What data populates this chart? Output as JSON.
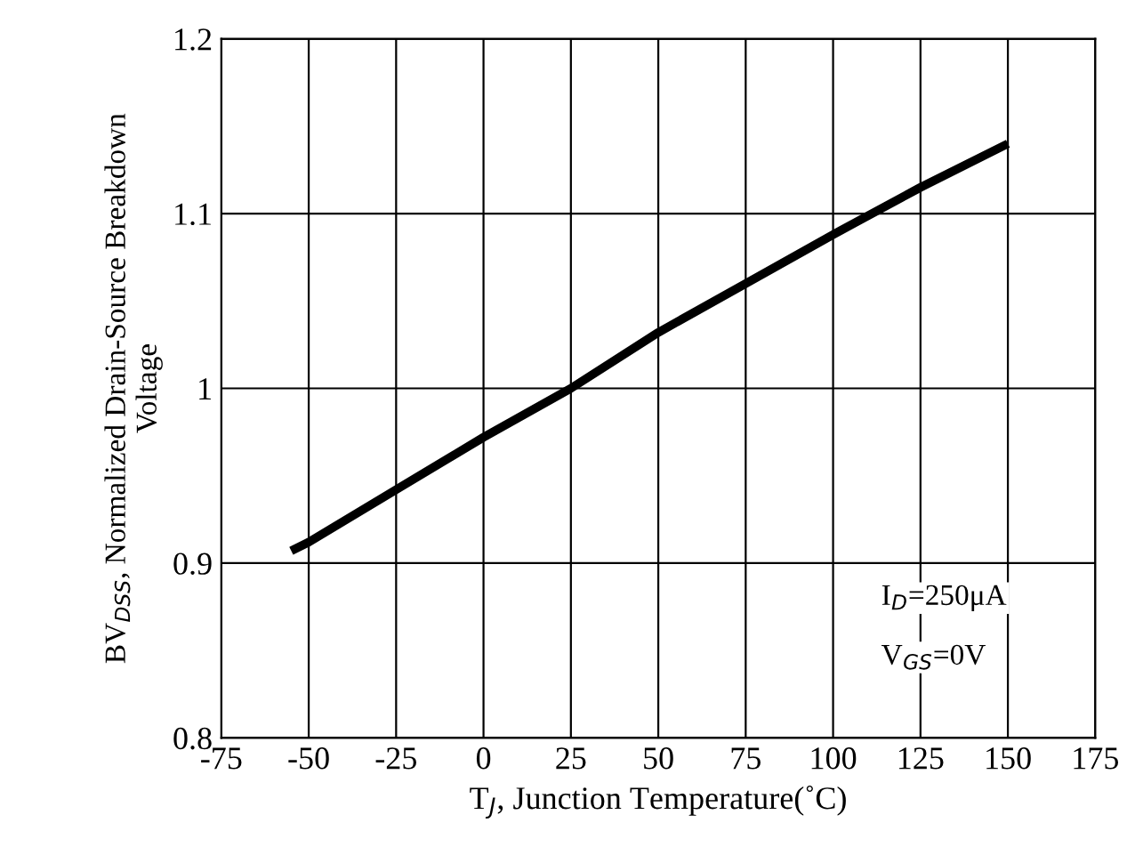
{
  "chart_data": {
    "type": "line",
    "xlabel": "T$_{J}$, Junction Temperature(˚C)",
    "ylabel": "BV$_{DSS}$, Normalized Drain-Source Breakdown\nVoltage",
    "x": [
      -55,
      -50,
      -25,
      0,
      25,
      50,
      75,
      100,
      125,
      150
    ],
    "series": [
      {
        "color": "#000000",
        "values": [
          0.907,
          0.912,
          0.942,
          0.972,
          1.0,
          1.032,
          1.06,
          1.088,
          1.115,
          1.14
        ]
      }
    ],
    "xlim": [
      -75,
      175
    ],
    "xticks": [
      -75,
      -50,
      -25,
      0,
      25,
      50,
      75,
      100,
      125,
      150,
      175
    ],
    "ylim": [
      0.8,
      1.2
    ],
    "yticks": [
      {
        "value": 0.8,
        "label": "0.8"
      },
      {
        "value": 0.9,
        "label": "0.9"
      },
      1,
      {
        "value": 1.1,
        "label": "1.1"
      },
      {
        "value": 1.2,
        "label": "1.2"
      }
    ],
    "grid": true,
    "marker": "none",
    "line_style": "solid",
    "annotations": [
      "I$_{D}$=250μA",
      "V$_{GS}$=0V"
    ]
  }
}
